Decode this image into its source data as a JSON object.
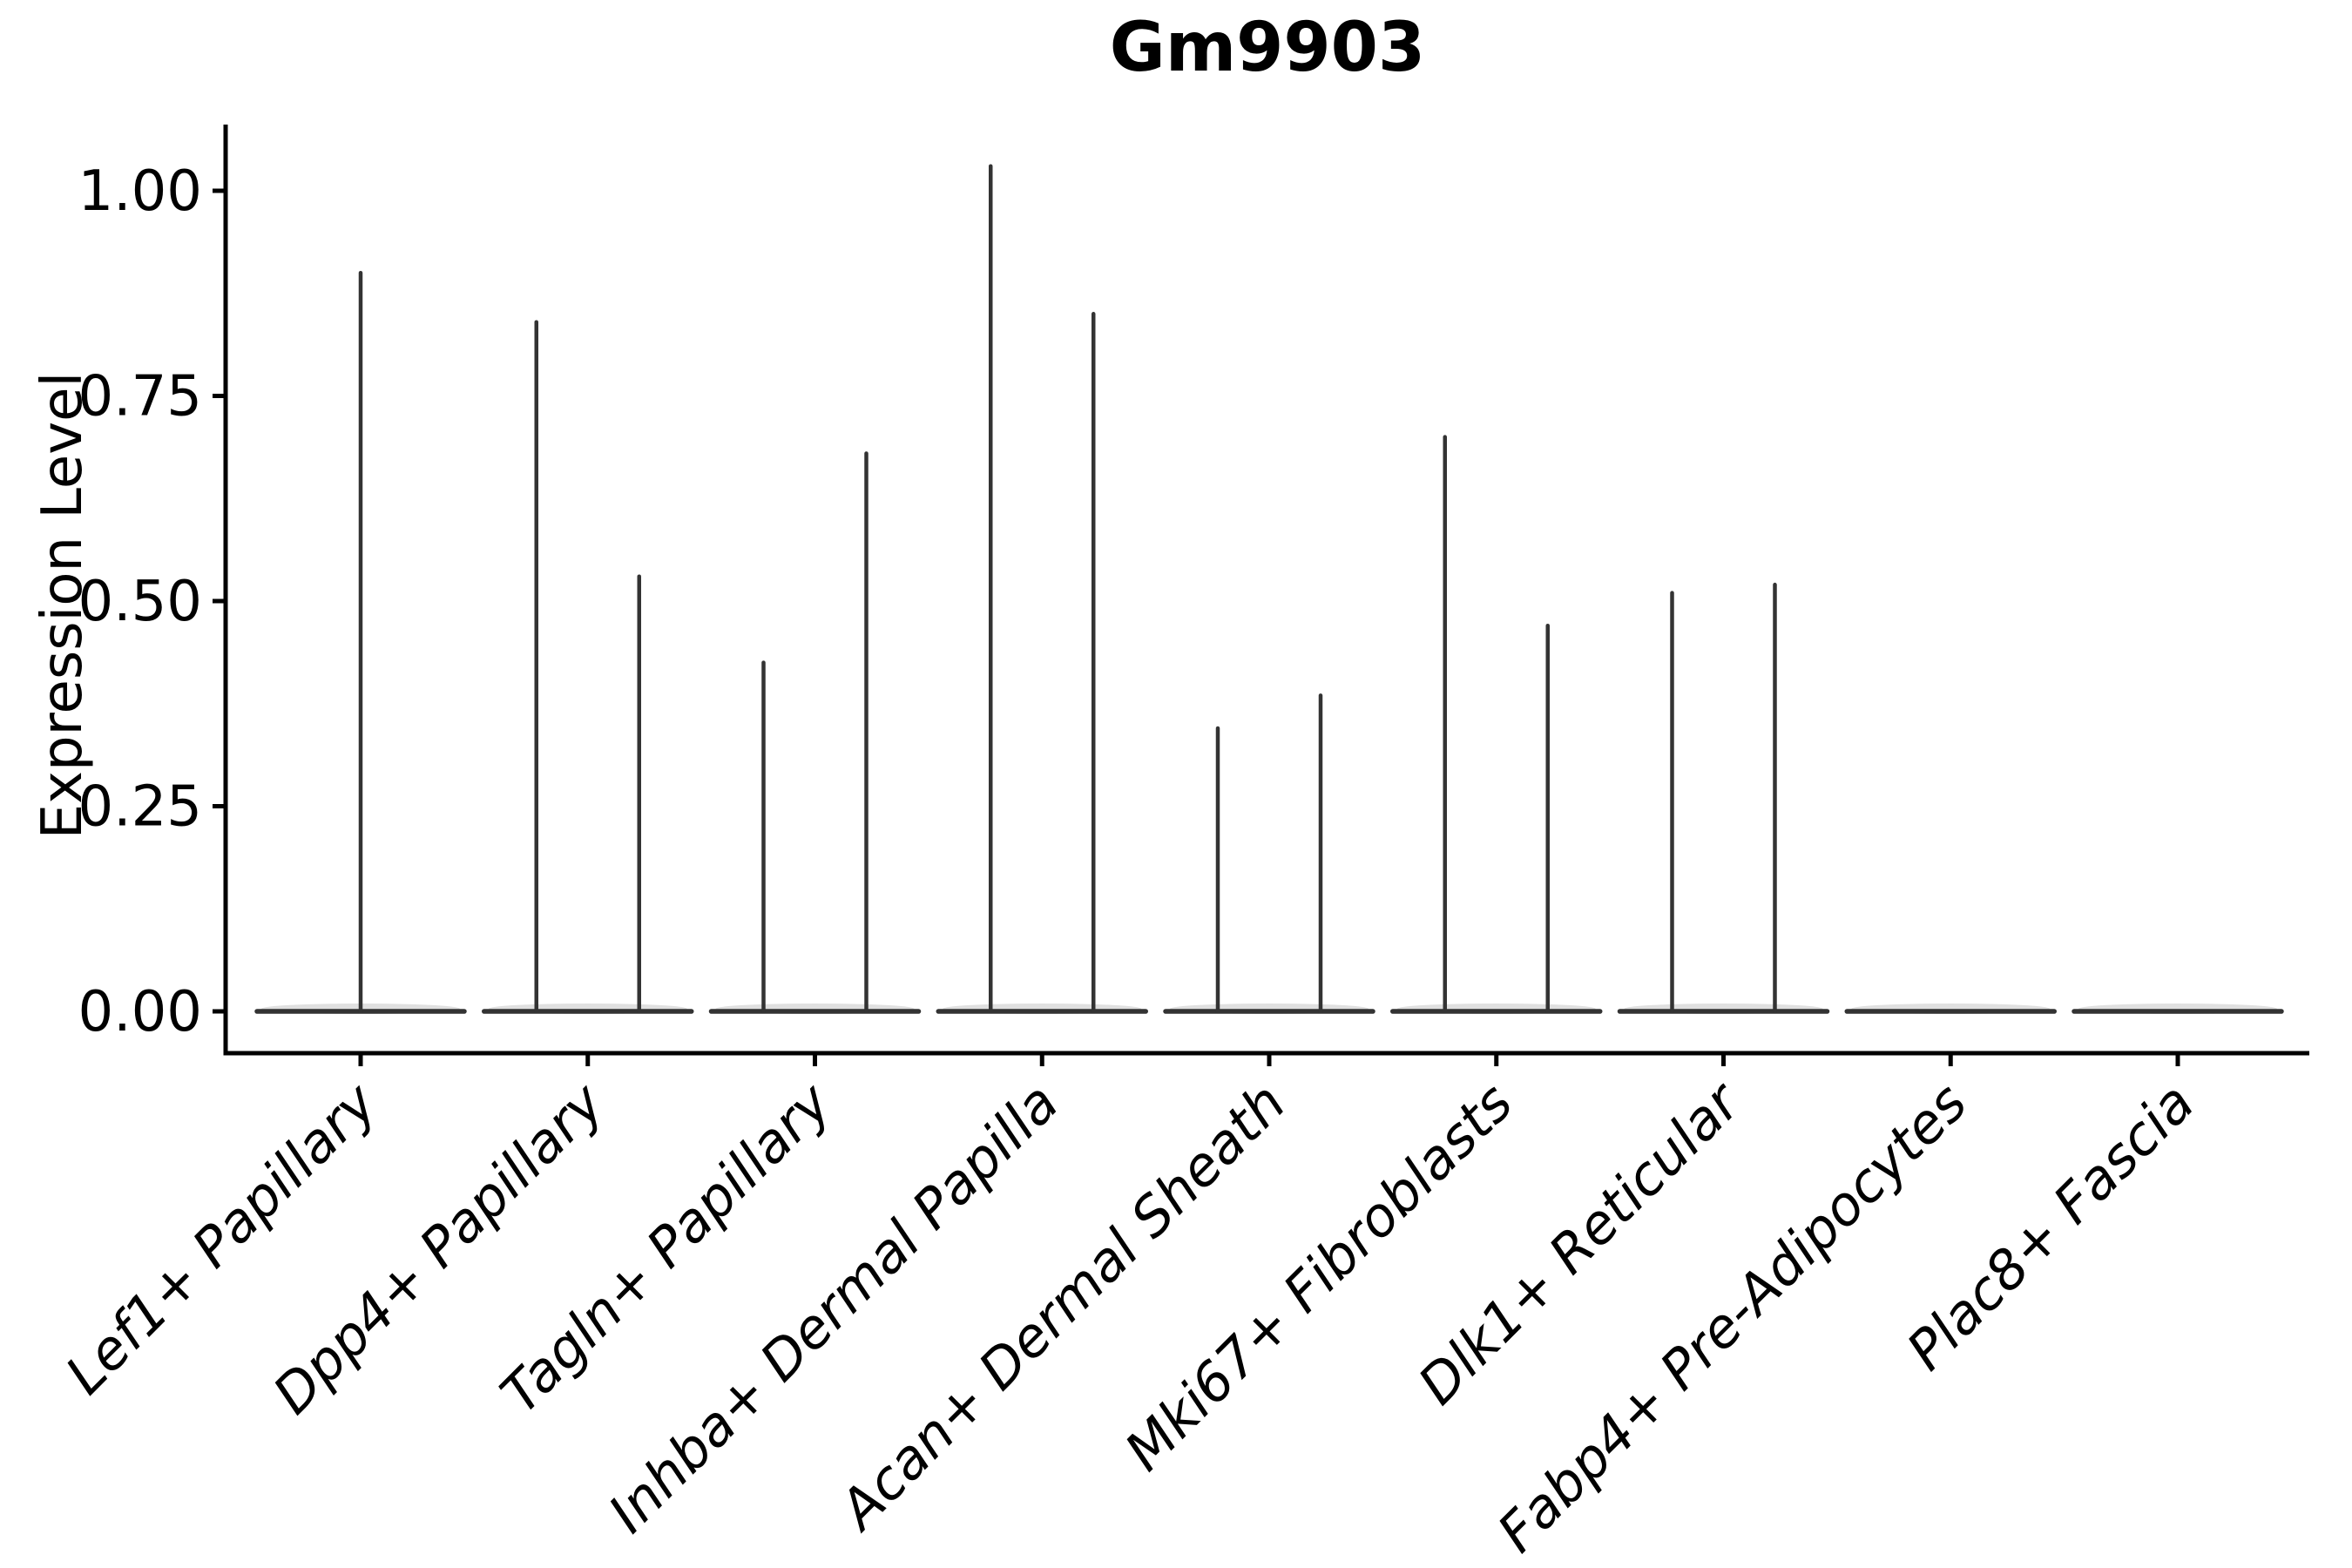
{
  "chart_data": {
    "type": "violin",
    "title": "Gm9903",
    "xlabel": "",
    "ylabel": "Expression Level",
    "yticks": [
      0.0,
      0.25,
      0.5,
      0.75,
      1.0
    ],
    "ytick_labels": [
      "0.00",
      "0.25",
      "0.50",
      "0.75",
      "1.00"
    ],
    "ylim": [
      -0.05,
      1.08
    ],
    "grid": false,
    "legend": "none",
    "categories": [
      "Lef1+ Papillary",
      "Dpp4+ Papillary",
      "Tagln+ Papillary",
      "Inhba+ Dermal Papilla",
      "Acan+ Dermal Sheath",
      "Mki67+ Fibroblasts",
      "Dlk1+ Reticular",
      "Fabp4+ Pre-Adipocytes",
      "Plac8+ Fascia"
    ],
    "violins": [
      {
        "category": "Lef1+ Papillary",
        "needles": [
          {
            "group": "center",
            "max": 0.9
          }
        ]
      },
      {
        "category": "Dpp4+ Papillary",
        "needles": [
          {
            "group": "left",
            "max": 0.84
          },
          {
            "group": "right",
            "max": 0.53
          }
        ]
      },
      {
        "category": "Tagln+ Papillary",
        "needles": [
          {
            "group": "left",
            "max": 0.425
          },
          {
            "group": "right",
            "max": 0.68
          }
        ]
      },
      {
        "category": "Inhba+ Dermal Papilla",
        "needles": [
          {
            "group": "left",
            "max": 1.03
          },
          {
            "group": "right",
            "max": 0.85
          }
        ]
      },
      {
        "category": "Acan+ Dermal Sheath",
        "needles": [
          {
            "group": "left",
            "max": 0.345
          },
          {
            "group": "right",
            "max": 0.385
          }
        ]
      },
      {
        "category": "Mki67+ Fibroblasts",
        "needles": [
          {
            "group": "left",
            "max": 0.7
          },
          {
            "group": "right",
            "max": 0.47
          }
        ]
      },
      {
        "category": "Dlk1+ Reticular",
        "needles": [
          {
            "group": "left",
            "max": 0.51
          },
          {
            "group": "right",
            "max": 0.52
          }
        ]
      },
      {
        "category": "Fabp4+ Pre-Adipocytes",
        "needles": []
      },
      {
        "category": "Plac8+ Fascia",
        "needles": []
      }
    ],
    "colors": {
      "violin_outline": "#333333",
      "violin_body": "#999999",
      "axis": "#000000",
      "text": "#000000",
      "background": "#ffffff"
    }
  }
}
